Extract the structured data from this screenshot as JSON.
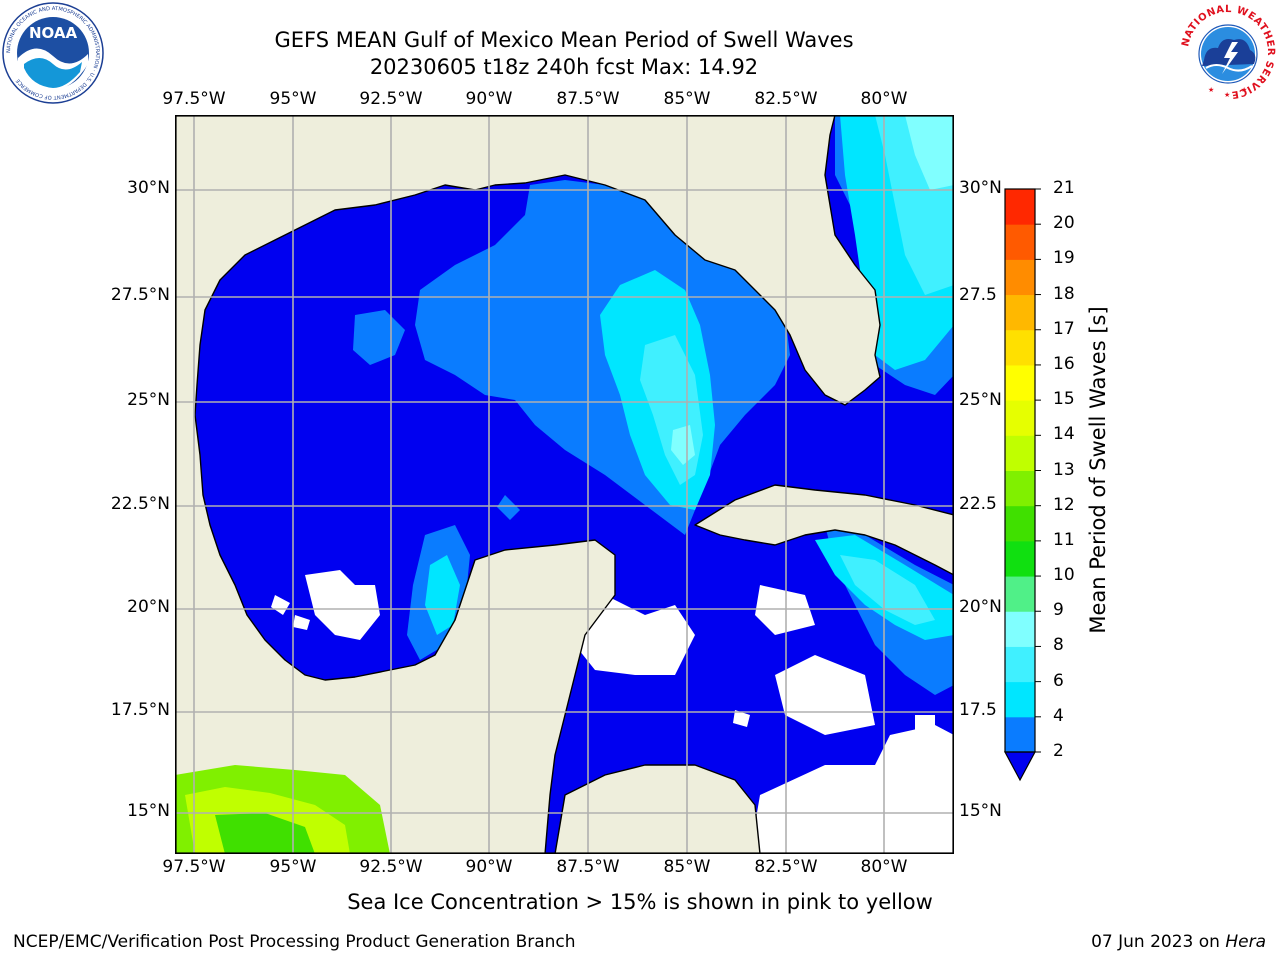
{
  "title": {
    "line1": "GEFS MEAN Gulf of Mexico Mean Period of Swell Waves",
    "line2": "20230605 t18z 240h fcst   Max: 14.92"
  },
  "map": {
    "longitude_labels": [
      "97.5°W",
      "95°W",
      "92.5°W",
      "90°W",
      "87.5°W",
      "85°W",
      "82.5°W",
      "80°W"
    ],
    "latitude_labels_left": [
      "30°N",
      "27.5°N",
      "25°N",
      "22.5°N",
      "20°N",
      "17.5°N",
      "15°N"
    ],
    "latitude_labels_right": [
      "30°N",
      "27.5",
      "25°N",
      "22.5",
      "20°N",
      "17.5",
      "15°N"
    ],
    "land_color": "#eeeedc",
    "no_data_color": "#ffffff",
    "grid_color": "#b0b0b0"
  },
  "colorbar": {
    "label": "Mean Period of Swell Waves [s]",
    "ticks": [
      "2",
      "4",
      "6",
      "8",
      "9",
      "10",
      "11",
      "12",
      "13",
      "14",
      "15",
      "16",
      "17",
      "18",
      "19",
      "20",
      "21"
    ],
    "colors": [
      "#0a7cff",
      "#00e6ff",
      "#40f0ff",
      "#80ffff",
      "#50f088",
      "#10e010",
      "#40e000",
      "#80f000",
      "#c0ff00",
      "#e6ff00",
      "#ffff00",
      "#ffe000",
      "#ffb800",
      "#ff8c00",
      "#ff5a00",
      "#ff2800",
      "#ff0000"
    ],
    "under_color": "#0000f0"
  },
  "bottom_note": "Sea Ice Concentration > 15% is shown in pink to yellow",
  "footer": {
    "left": "NCEP/EMC/Verification Post Processing Product Generation Branch",
    "right_date": "07 Jun 2023 on ",
    "right_host": "Hera"
  },
  "logos": {
    "noaa_text": "NOAA",
    "noaa_ring_text": "NATIONAL OCEANIC AND ATMOSPHERIC ADMINISTRATION · U.S. DEPARTMENT OF COMMERCE",
    "nws_ring_text": "NATIONAL WEATHER SERVICE"
  }
}
